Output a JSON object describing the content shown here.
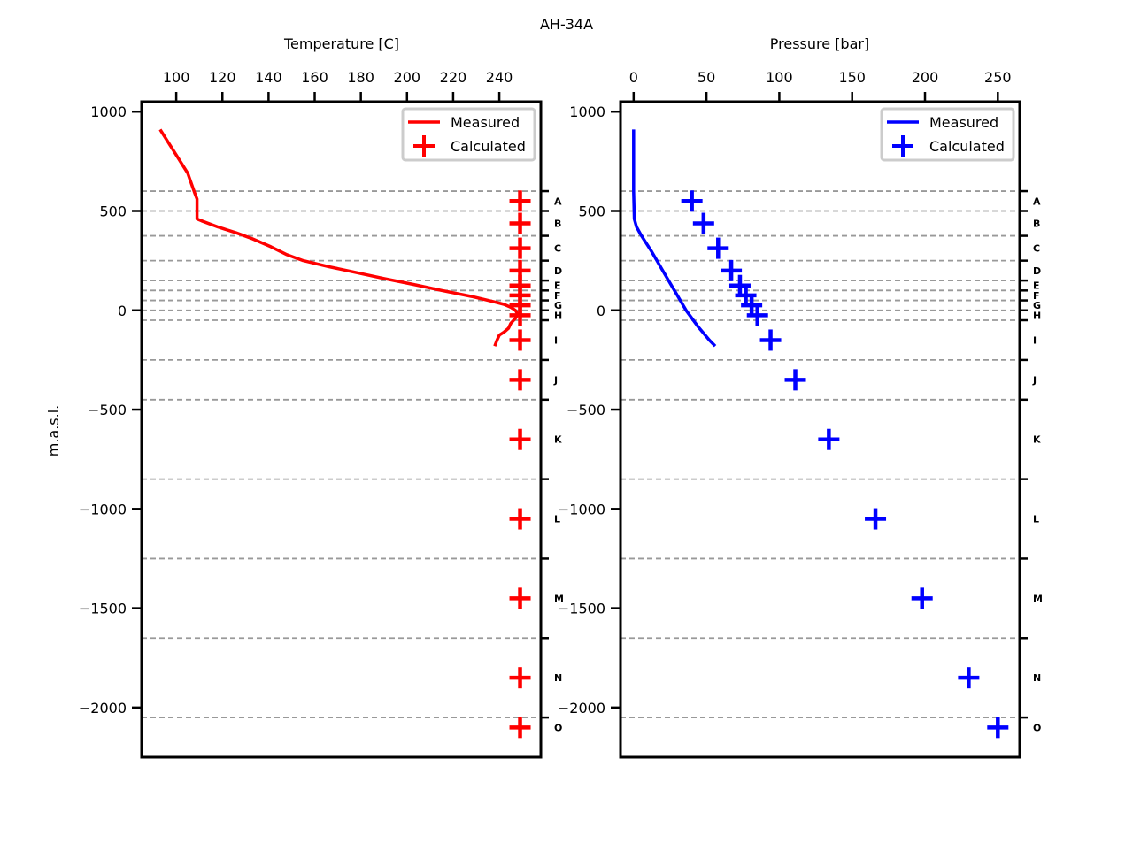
{
  "figure_title": "AH-34A",
  "ylabel": "m.a.s.l.",
  "layers": [
    "A",
    "B",
    "C",
    "D",
    "E",
    "F",
    "G",
    "H",
    "I",
    "J",
    "K",
    "L",
    "M",
    "N",
    "O"
  ],
  "layer_boundaries": [
    600,
    500,
    375,
    250,
    150,
    100,
    50,
    0,
    -50,
    -250,
    -450,
    -850,
    -1250,
    -1650,
    -2050
  ],
  "layer_label_elevations": [
    550,
    437.5,
    312.5,
    200,
    125,
    75,
    25,
    -25,
    -150,
    -350,
    -650,
    -1050,
    -1450,
    -1850,
    -2100
  ],
  "chart_data": [
    {
      "type": "line",
      "title": "",
      "xlabel": "Temperature [C]",
      "ylabel": "m.a.s.l.",
      "xlim": [
        85,
        258
      ],
      "ylim": [
        -2250,
        1050
      ],
      "xticks": [
        100,
        120,
        140,
        160,
        180,
        200,
        220,
        240
      ],
      "yticks": [
        1000,
        500,
        0,
        -500,
        -1000,
        -1500,
        -2000
      ],
      "color": "#ff0000",
      "legend_position": "top-right",
      "series": [
        {
          "name": "Measured",
          "kind": "line",
          "x": [
            93,
            99,
            105,
            108,
            109,
            109,
            111,
            118,
            126,
            133,
            141,
            148,
            155,
            166,
            178,
            190,
            203,
            215,
            228,
            237,
            242,
            245,
            247,
            248,
            247,
            245,
            244,
            242,
            240,
            239,
            238
          ],
          "y": [
            910,
            800,
            690,
            590,
            560,
            460,
            450,
            420,
            390,
            360,
            320,
            280,
            250,
            220,
            190,
            160,
            130,
            100,
            70,
            45,
            30,
            15,
            0,
            -20,
            -40,
            -65,
            -90,
            -110,
            -125,
            -150,
            -180
          ]
        },
        {
          "name": "Calculated",
          "kind": "scatter",
          "x": [
            249,
            249,
            249,
            249,
            249,
            249,
            249,
            249,
            249,
            249,
            249,
            249,
            249,
            249,
            249
          ],
          "y": [
            550,
            437.5,
            312.5,
            200,
            125,
            75,
            25,
            -25,
            -150,
            -350,
            -650,
            -1050,
            -1450,
            -1850,
            -2100
          ]
        }
      ]
    },
    {
      "type": "line",
      "title": "",
      "xlabel": "Pressure [bar]",
      "ylabel": "",
      "xlim": [
        -9,
        265
      ],
      "ylim": [
        -2250,
        1050
      ],
      "xticks": [
        0,
        50,
        100,
        150,
        200,
        250
      ],
      "yticks": [
        1000,
        500,
        0,
        -500,
        -1000,
        -1500,
        -2000
      ],
      "color": "#0000ff",
      "legend_position": "top-right",
      "series": [
        {
          "name": "Measured",
          "kind": "line",
          "x": [
            0,
            0,
            0,
            0,
            0.5,
            2,
            5,
            12,
            20,
            28,
            36,
            44,
            52,
            56
          ],
          "y": [
            910,
            800,
            700,
            600,
            460,
            420,
            380,
            300,
            200,
            100,
            0,
            -80,
            -150,
            -180
          ]
        },
        {
          "name": "Calculated",
          "kind": "scatter",
          "x": [
            40,
            48,
            58,
            67,
            73,
            77,
            81,
            85,
            94,
            111,
            134,
            166,
            198,
            230,
            250
          ],
          "y": [
            550,
            437.5,
            312.5,
            200,
            125,
            75,
            25,
            -25,
            -150,
            -350,
            -650,
            -1050,
            -1450,
            -1850,
            -2100
          ]
        }
      ]
    }
  ]
}
